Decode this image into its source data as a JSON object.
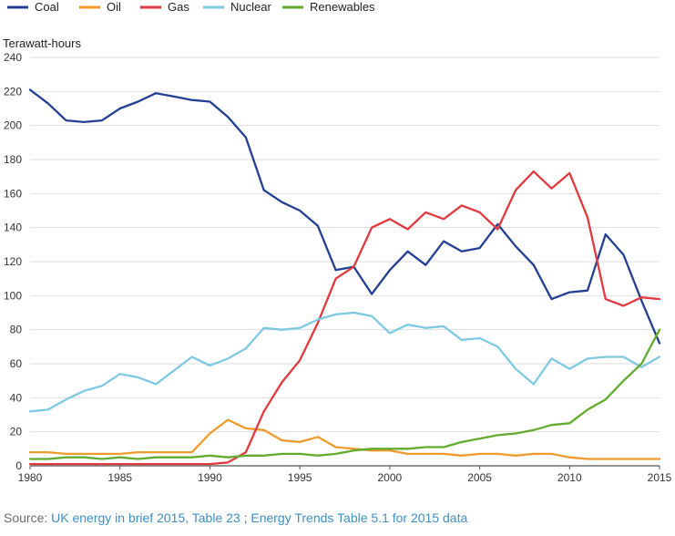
{
  "chart_data": {
    "type": "line",
    "title": "",
    "ylabel": "Terawatt-hours",
    "xlabel": "",
    "xlim": [
      1980,
      2015
    ],
    "ylim": [
      0,
      240
    ],
    "x_ticks": [
      1980,
      1985,
      1990,
      1995,
      2000,
      2005,
      2010,
      2015
    ],
    "y_ticks": [
      0,
      20,
      40,
      60,
      80,
      100,
      120,
      140,
      160,
      180,
      200,
      220,
      240
    ],
    "grid": "horizontal",
    "legend_position": "top-left",
    "x": [
      1980,
      1981,
      1982,
      1983,
      1984,
      1985,
      1986,
      1987,
      1988,
      1989,
      1990,
      1991,
      1992,
      1993,
      1994,
      1995,
      1996,
      1997,
      1998,
      1999,
      2000,
      2001,
      2002,
      2003,
      2004,
      2005,
      2006,
      2007,
      2008,
      2009,
      2010,
      2011,
      2012,
      2013,
      2014,
      2015
    ],
    "series": [
      {
        "name": "Coal",
        "color": "#233f93",
        "values": [
          221,
          213,
          203,
          202,
          203,
          210,
          214,
          219,
          217,
          215,
          214,
          205,
          193,
          162,
          155,
          150,
          141,
          115,
          117,
          101,
          115,
          126,
          118,
          132,
          126,
          128,
          142,
          129,
          118,
          98,
          102,
          103,
          136,
          124,
          97,
          72
        ]
      },
      {
        "name": "Oil",
        "color": "#ee9a2c",
        "values": [
          8,
          8,
          7,
          7,
          7,
          7,
          8,
          8,
          8,
          8,
          19,
          27,
          22,
          21,
          15,
          14,
          17,
          11,
          10,
          9,
          9,
          7,
          7,
          7,
          6,
          7,
          7,
          6,
          7,
          7,
          5,
          4,
          4,
          4,
          4,
          4
        ]
      },
      {
        "name": "Gas",
        "color": "#e03a3e",
        "values": [
          1,
          1,
          1,
          1,
          1,
          1,
          1,
          1,
          1,
          1,
          1,
          2,
          8,
          32,
          49,
          62,
          84,
          110,
          117,
          140,
          145,
          139,
          149,
          145,
          153,
          149,
          139,
          162,
          173,
          163,
          172,
          146,
          98,
          94,
          99,
          98
        ]
      },
      {
        "name": "Nuclear",
        "color": "#7ec8e3",
        "values": [
          32,
          33,
          39,
          44,
          47,
          54,
          52,
          48,
          56,
          64,
          59,
          63,
          69,
          81,
          80,
          81,
          86,
          89,
          90,
          88,
          78,
          83,
          81,
          82,
          74,
          75,
          70,
          57,
          48,
          63,
          57,
          63,
          64,
          64,
          58,
          64
        ]
      },
      {
        "name": "Renewables",
        "color": "#62ab2e",
        "values": [
          4,
          4,
          5,
          5,
          4,
          5,
          4,
          5,
          5,
          5,
          6,
          5,
          6,
          6,
          7,
          7,
          6,
          7,
          9,
          10,
          10,
          10,
          11,
          11,
          14,
          16,
          18,
          19,
          21,
          24,
          25,
          33,
          39,
          50,
          60,
          80
        ]
      }
    ]
  },
  "source": {
    "prefix": "Source: ",
    "link1": "UK energy in brief 2015, Table 23",
    "separator": " ; ",
    "link2": "Energy Trends Table 5.1 for 2015 data"
  }
}
